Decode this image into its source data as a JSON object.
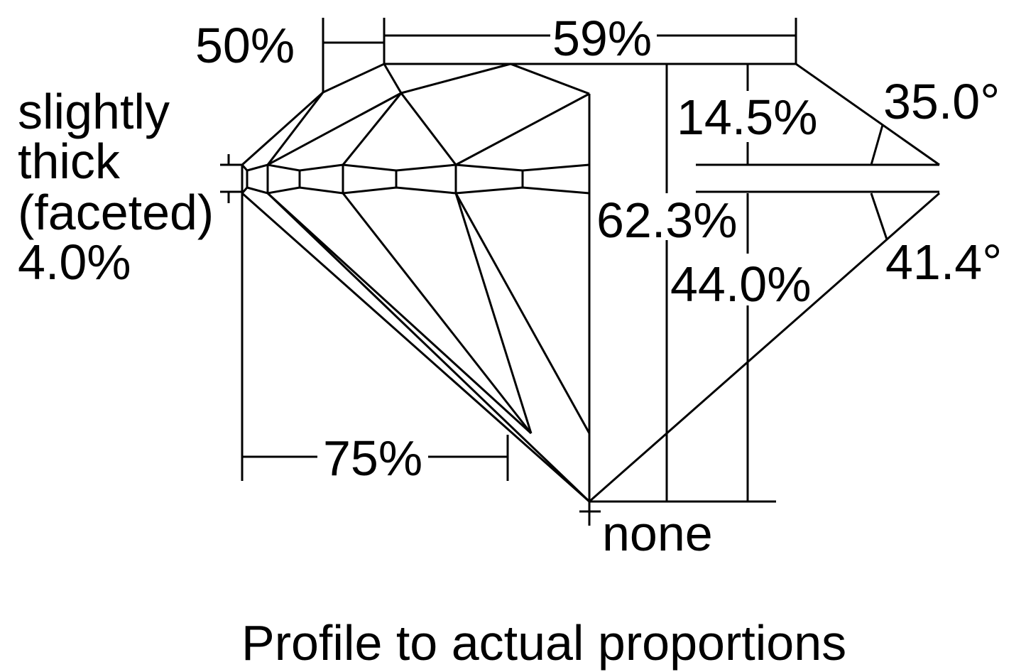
{
  "diagram": {
    "caption": "Profile to actual proportions",
    "colors": {
      "line": "#000000",
      "background": "#ffffff"
    },
    "labels": {
      "table_to_star": "50%",
      "table": "59%",
      "crown_height": "14.5%",
      "crown_angle": "35.0°",
      "total_depth": "62.3%",
      "pavilion_angle": "41.4°",
      "pavilion_depth": "44.0%",
      "lower_half": "75%",
      "culet": "none",
      "girdle": [
        "slightly",
        "thick",
        "(faceted)",
        "4.0%"
      ]
    }
  }
}
